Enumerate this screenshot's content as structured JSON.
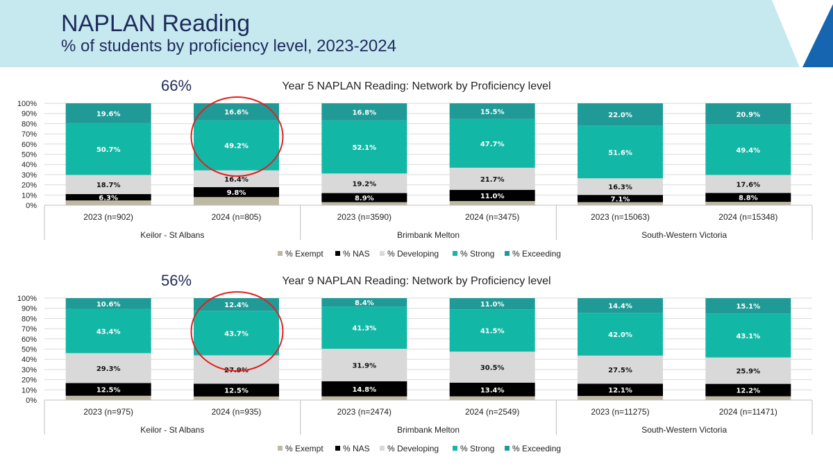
{
  "header": {
    "title": "NAPLAN Reading",
    "subtitle": "% of students by proficiency level, 2023-2024",
    "band_color": "#c5e9ee",
    "accent_color": "#1565b0"
  },
  "colors": {
    "% Exempt": "#beb9a2",
    "% NAS": "#000000",
    "% Developing": "#d9d9d9",
    "% Strong": "#13b7a6",
    "% Exceeding": "#1f9a96",
    "circle": "#e02020"
  },
  "chart_data": [
    {
      "type": "bar",
      "stacked": true,
      "title": "Year 5 NAPLAN Reading: Network by Proficiency level",
      "callout": "66%",
      "categories": [
        "2023 (n=902)",
        "2024 (n=805)",
        "2023 (n=3590)",
        "2024 (n=3475)",
        "2023 (n=15063)",
        "2024 (n=15348)"
      ],
      "groups": [
        "Keilor - St Albans",
        "Brimbank Melton",
        "South-Western Victoria"
      ],
      "ylim": [
        0,
        100
      ],
      "yticks": [
        "0%",
        "10%",
        "20%",
        "30%",
        "40%",
        "50%",
        "60%",
        "70%",
        "80%",
        "90%",
        "100%"
      ],
      "series": [
        {
          "name": "% Exempt",
          "values": [
            4.7,
            8.0,
            3.0,
            4.1,
            3.0,
            3.3
          ]
        },
        {
          "name": "% NAS",
          "values": [
            6.3,
            9.8,
            8.9,
            11.0,
            7.1,
            8.8
          ]
        },
        {
          "name": "% Developing",
          "values": [
            18.7,
            16.4,
            19.2,
            21.7,
            16.3,
            17.6
          ]
        },
        {
          "name": "% Strong",
          "values": [
            50.7,
            49.2,
            52.1,
            47.7,
            51.6,
            49.4
          ]
        },
        {
          "name": "% Exceeding",
          "values": [
            19.6,
            16.6,
            16.8,
            15.5,
            22.0,
            20.9
          ]
        }
      ],
      "data_labels": [
        [
          "",
          "",
          "",
          "",
          "",
          ""
        ],
        [
          "6.3%",
          "9.8%",
          "8.9%",
          "11.0%",
          "7.1%",
          "8.8%"
        ],
        [
          "18.7%",
          "16.4%",
          "19.2%",
          "21.7%",
          "16.3%",
          "17.6%"
        ],
        [
          "50.7%",
          "49.2%",
          "52.1%",
          "47.7%",
          "51.6%",
          "49.4%"
        ],
        [
          "19.6%",
          "16.6%",
          "16.8%",
          "15.5%",
          "22.0%",
          "20.9%"
        ]
      ],
      "highlighted_category": 1,
      "legend": "bottom",
      "grid": true
    },
    {
      "type": "bar",
      "stacked": true,
      "title": "Year 9 NAPLAN Reading: Network by Proficiency level",
      "callout": "56%",
      "categories": [
        "2023 (n=975)",
        "2024 (n=935)",
        "2023 (n=2474)",
        "2024 (n=2549)",
        "2023 (n=11275)",
        "2024 (n=11471)"
      ],
      "groups": [
        "Keilor - St Albans",
        "Brimbank Melton",
        "South-Western Victoria"
      ],
      "ylim": [
        0,
        100
      ],
      "yticks": [
        "0%",
        "10%",
        "20%",
        "30%",
        "40%",
        "50%",
        "60%",
        "70%",
        "80%",
        "90%",
        "100%"
      ],
      "series": [
        {
          "name": "% Exempt",
          "values": [
            4.2,
            3.5,
            3.6,
            3.6,
            4.0,
            3.7
          ]
        },
        {
          "name": "% NAS",
          "values": [
            12.5,
            12.5,
            14.8,
            13.4,
            12.1,
            12.2
          ]
        },
        {
          "name": "% Developing",
          "values": [
            29.3,
            27.9,
            31.9,
            30.5,
            27.5,
            25.9
          ]
        },
        {
          "name": "% Strong",
          "values": [
            43.4,
            43.7,
            41.3,
            41.5,
            42.0,
            43.1
          ]
        },
        {
          "name": "% Exceeding",
          "values": [
            10.6,
            12.4,
            8.4,
            11.0,
            14.4,
            15.1
          ]
        }
      ],
      "data_labels": [
        [
          "",
          "",
          "",
          "",
          "",
          ""
        ],
        [
          "12.5%",
          "12.5%",
          "14.8%",
          "13.4%",
          "12.1%",
          "12.2%"
        ],
        [
          "29.3%",
          "27.9%",
          "31.9%",
          "30.5%",
          "27.5%",
          "25.9%"
        ],
        [
          "43.4%",
          "43.7%",
          "41.3%",
          "41.5%",
          "42.0%",
          "43.1%"
        ],
        [
          "10.6%",
          "12.4%",
          "8.4%",
          "11.0%",
          "14.4%",
          "15.1%"
        ]
      ],
      "highlighted_category": 1,
      "legend": "bottom",
      "grid": true
    }
  ]
}
